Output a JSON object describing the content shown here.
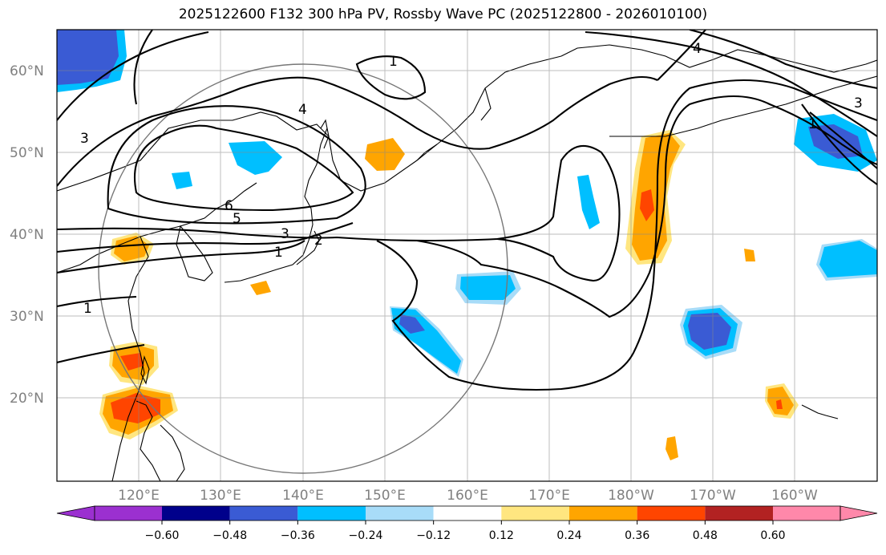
{
  "title": "2025122600 F132 300 hPa PV, Rossby Wave PC (2025122800 - 2026010100)",
  "lat_labels": [
    "60°N",
    "50°N",
    "40°N",
    "30°N",
    "20°N"
  ],
  "lon_labels": [
    "120°E",
    "130°E",
    "140°E",
    "150°E",
    "160°E",
    "170°E",
    "180°W",
    "170°W",
    "160°W"
  ],
  "contour_labels": [
    "1",
    "4",
    "3",
    "6",
    "5",
    "3",
    "2",
    "1",
    "1",
    "1",
    "3",
    "4"
  ],
  "colorbar": {
    "ticks": [
      "−0.60",
      "−0.48",
      "−0.36",
      "−0.24",
      "−0.12",
      "0.12",
      "0.24",
      "0.36",
      "0.48",
      "0.60"
    ],
    "colors": [
      "#9b30d0",
      "#00008b",
      "#3a5bd4",
      "#00bfff",
      "#a8dcf8",
      "#ffffff",
      "#ffe680",
      "#ffa500",
      "#ff4500",
      "#b22222",
      "#ff88aa"
    ]
  }
}
